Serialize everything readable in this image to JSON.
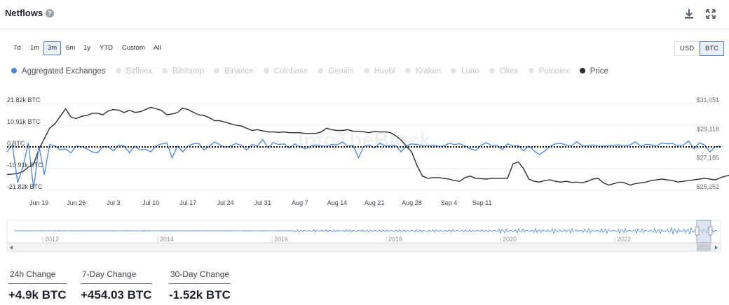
{
  "header": {
    "title": "Netflows",
    "help_glyph": "?"
  },
  "icons": {
    "help": "help-circle-icon",
    "download": "download-icon",
    "expand": "expand-icon"
  },
  "ranges": [
    {
      "label": "7d",
      "active": false
    },
    {
      "label": "1m",
      "active": false
    },
    {
      "label": "3m",
      "active": true
    },
    {
      "label": "6m",
      "active": false
    },
    {
      "label": "1y",
      "active": false
    },
    {
      "label": "YTD",
      "active": false
    },
    {
      "label": "Custom",
      "active": false
    },
    {
      "label": "All",
      "active": false
    }
  ],
  "units": [
    {
      "label": "USD",
      "active": false
    },
    {
      "label": "BTC",
      "active": true
    }
  ],
  "legend": [
    {
      "label": "Aggregated Exchanges",
      "active": true,
      "color": "#4a86e0"
    },
    {
      "label": "Bitfinex",
      "active": false
    },
    {
      "label": "Bitstamp",
      "active": false
    },
    {
      "label": "Binance",
      "active": false
    },
    {
      "label": "Coinbase",
      "active": false
    },
    {
      "label": "Gemini",
      "active": false
    },
    {
      "label": "Huobi",
      "active": false
    },
    {
      "label": "Kraken",
      "active": false
    },
    {
      "label": "Luno",
      "active": false
    },
    {
      "label": "Okex",
      "active": false
    },
    {
      "label": "Poloniex",
      "active": false
    },
    {
      "label": "Price",
      "active": true,
      "color": "#2d2f33"
    }
  ],
  "chart_data": {
    "type": "line",
    "title": "Netflows",
    "watermark": "IntoTheBlock",
    "x_tick_labels": [
      "Jun 19",
      "Jun 26",
      "Jul 3",
      "Jul 10",
      "Jul 17",
      "Jul 24",
      "Jul 31",
      "Aug 7",
      "Aug 14",
      "Aug 21",
      "Aug 28",
      "Sep 4",
      "Sep 11"
    ],
    "y_left_tick_labels": [
      "21.82k BTC",
      "10.91k BTC",
      "0 BTC",
      "-10.91k BTC",
      "-21.82k BTC"
    ],
    "y_left_ticks": [
      21820,
      10910,
      0,
      -10910,
      -21820
    ],
    "y_left_range": [
      -21820,
      21820
    ],
    "y_right_tick_labels": [
      "$31,051",
      "$29,118",
      "$27,185",
      "$25,252"
    ],
    "y_right_ticks": [
      31051,
      29118,
      27185,
      25252
    ],
    "y_right_range": [
      25252,
      31051
    ],
    "zero_line": "dotted",
    "grid": true,
    "x_start": "Jun 13",
    "series": [
      {
        "name": "Aggregated Exchanges",
        "axis": "left",
        "color": "#4a86e0",
        "values": [
          -2500,
          1000,
          -18000,
          -10000,
          2000,
          -21000,
          500,
          -14000,
          1200,
          600,
          -1500,
          -1000,
          -3000,
          500,
          100,
          -1000,
          -2500,
          -3000,
          200,
          0,
          -2000,
          1000,
          500,
          -3000,
          300,
          -1500,
          -1200,
          -2500,
          500,
          1500,
          2000,
          -5500,
          500,
          -2500,
          500,
          1500,
          1800,
          -1600,
          500,
          2500,
          1000,
          -200,
          500,
          1700,
          800,
          -1600,
          1200,
          500,
          3800,
          -500,
          2200,
          1200,
          1500,
          -500,
          1500,
          200,
          -1000,
          400,
          1000,
          500,
          300,
          1200,
          1000,
          2500,
          500,
          800,
          -5500,
          200,
          1000,
          -600,
          2000,
          500,
          500,
          800,
          -2500,
          500,
          1500,
          1200,
          700,
          500,
          900,
          400,
          500,
          1800,
          1200,
          1600,
          500,
          -1000,
          -1800,
          800,
          2100,
          700,
          900,
          -1300,
          1500,
          500,
          700,
          -2000,
          500,
          -2000,
          -3900,
          -2000,
          500,
          1500,
          1800,
          1000,
          500,
          2600,
          600,
          700,
          1000,
          500,
          400,
          600,
          900,
          1000,
          500,
          1000,
          2500,
          400,
          1300,
          1000,
          500,
          2000,
          1500,
          1700,
          500,
          1000,
          3000,
          -1000,
          2000,
          1000,
          -2500,
          0,
          500
        ]
      },
      {
        "name": "Price",
        "axis": "right",
        "color": "#2d2f33",
        "values": [
          26300,
          26330,
          26380,
          26500,
          26800,
          27000,
          28000,
          28700,
          29400,
          29700,
          30200,
          30700,
          30150,
          30050,
          30200,
          30250,
          30400,
          30400,
          30300,
          30550,
          30650,
          30600,
          30450,
          30600,
          30460,
          30500,
          30650,
          30800,
          30700,
          30600,
          30300,
          30350,
          30450,
          30750,
          30650,
          30460,
          30300,
          30250,
          30100,
          29900,
          29900,
          29800,
          29700,
          29600,
          29550,
          29400,
          29250,
          29300,
          29230,
          29150,
          29150,
          29120,
          29150,
          29100,
          29100,
          29100,
          29050,
          29050,
          29050,
          29150,
          29400,
          29300,
          29250,
          29250,
          29300,
          29200,
          29200,
          29150,
          29100,
          29180,
          29150,
          29150,
          29100,
          28900,
          28600,
          28200,
          27800,
          26900,
          26200,
          26050,
          26100,
          26100,
          26050,
          26000,
          25900,
          25850,
          26100,
          26200,
          26050,
          26030,
          26000,
          26050,
          26050,
          26050,
          26050,
          27000,
          27150,
          26700,
          26000,
          25850,
          25800,
          25900,
          25950,
          25850,
          25800,
          25850,
          25780,
          25800,
          25750,
          25850,
          26000,
          26050,
          25750,
          25600,
          25700,
          25800,
          25750,
          25600,
          25700,
          25750,
          25800,
          25900,
          25950,
          26000,
          25950,
          25900,
          25800,
          25850,
          25900,
          25950,
          26000,
          26050,
          26000,
          25950,
          26100,
          26200,
          26300
        ]
      }
    ],
    "navigator": {
      "x_tick_labels": [
        "2012",
        "2014",
        "2016",
        "2018",
        "2020",
        "2022"
      ]
    }
  },
  "stats": [
    {
      "label": "24h Change",
      "value": "+4.9k BTC"
    },
    {
      "label": "7-Day Change",
      "value": "+454.03 BTC"
    },
    {
      "label": "30-Day Change",
      "value": "-1.52k BTC"
    }
  ]
}
